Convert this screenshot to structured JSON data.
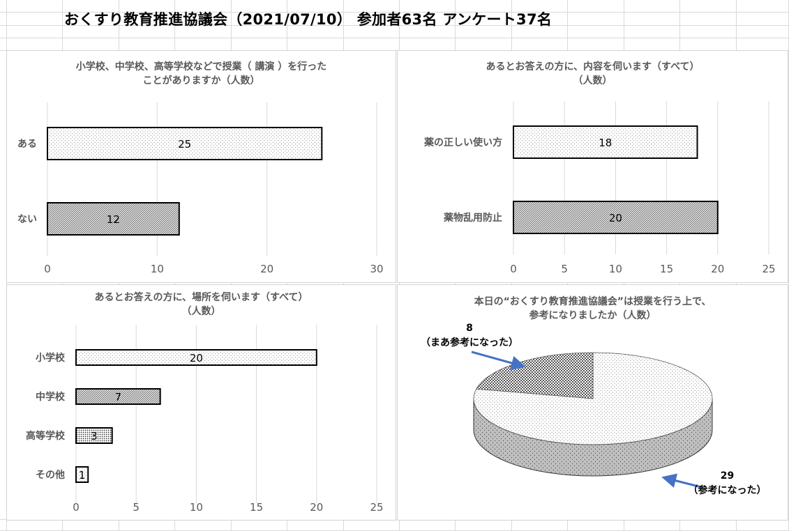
{
  "page": {
    "title": "おくすり教育推進協議会（2021/07/10） 参加者63名 アンケート37名"
  },
  "colors": {
    "bar_outline": "#000000",
    "gridline": "#d9d9d9",
    "axis_text": "#595959",
    "arrow": "#4472c4",
    "pie_side": "#bfbfbf"
  },
  "chart_data": [
    {
      "type": "bar",
      "orientation": "horizontal",
      "title_lines": [
        "小学校、中学校、高等学校などで授業（ 講演 ）を行った",
        "ことがありますか（人数）"
      ],
      "categories": [
        "ある",
        "ない"
      ],
      "values": [
        25,
        12
      ],
      "data_labels": [
        "25",
        "12"
      ],
      "patterns": [
        "dots-light",
        "diagonal"
      ],
      "xlim": [
        0,
        30
      ],
      "ticks": [
        "0",
        "10",
        "20",
        "30"
      ],
      "grid": true
    },
    {
      "type": "bar",
      "orientation": "horizontal",
      "title_lines": [
        "あるとお答えの方に、内容を伺います（すべて）",
        "（人数）"
      ],
      "categories": [
        "薬の正しい使い方",
        "薬物乱用防止"
      ],
      "values": [
        18,
        20
      ],
      "data_labels": [
        "18",
        "20"
      ],
      "patterns": [
        "dots-light",
        "diagonal"
      ],
      "xlim": [
        0,
        25
      ],
      "ticks": [
        "0",
        "5",
        "10",
        "15",
        "20",
        "25"
      ],
      "grid": true
    },
    {
      "type": "bar",
      "orientation": "horizontal",
      "title_lines": [
        "あるとお答えの方に、場所を伺います（すべて）",
        "（人数）"
      ],
      "categories": [
        "小学校",
        "中学校",
        "高等学校",
        "その他"
      ],
      "values": [
        20,
        7,
        3,
        1
      ],
      "data_labels": [
        "20",
        "7",
        "3",
        "1"
      ],
      "patterns": [
        "dots-light",
        "diagonal",
        "dots-dense",
        "dots-light"
      ],
      "xlim": [
        0,
        25
      ],
      "ticks": [
        "0",
        "5",
        "10",
        "15",
        "20",
        "25"
      ],
      "grid": true
    },
    {
      "type": "pie",
      "style": "3d",
      "title_lines": [
        "本日の“おくすり教育推進協議会”は授業を行う上で、",
        "参考になりましたか（人数）"
      ],
      "slices": [
        {
          "label": "（参考になった）",
          "value": 29,
          "value_label": "29",
          "pattern": "dots-light"
        },
        {
          "label": "（まあ参考になった）",
          "value": 8,
          "value_label": "8",
          "pattern": "checker"
        }
      ]
    }
  ]
}
